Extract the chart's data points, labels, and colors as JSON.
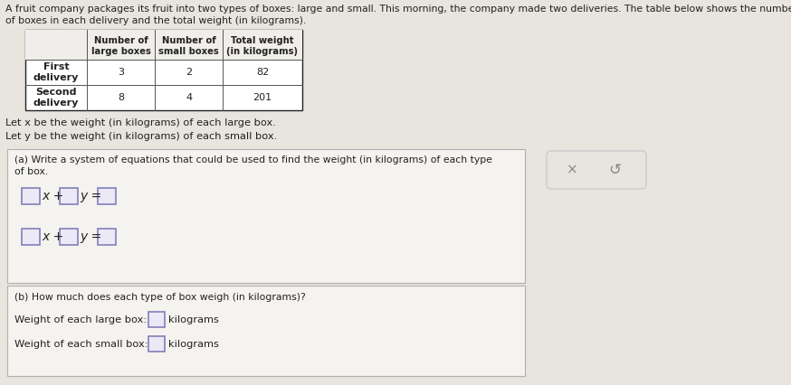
{
  "title_line1": "A fruit company packages its fruit into two types of boxes: large and small. This morning, the company made two deliveries. The table below shows the number",
  "title_line2": "of boxes in each delivery and the total weight (in kilograms).",
  "table_headers": [
    "",
    "Number of\nlarge boxes",
    "Number of\nsmall boxes",
    "Total weight\n(in kilograms)"
  ],
  "table_row1": [
    "First\ndelivery",
    "3",
    "2",
    "82"
  ],
  "table_row2": [
    "Second\ndelivery",
    "8",
    "4",
    "201"
  ],
  "let_x": "Let x be the weight (in kilograms) of each large box.",
  "let_y": "Let y be the weight (in kilograms) of each small box.",
  "part_a_label": "(a) Write a system of equations that could be used to find the weight (in kilograms) of each type\nof box.",
  "part_b_label": "(b) How much does each type of box weigh (in kilograms)?",
  "large_box_label": "Weight of each large box:",
  "small_box_label": "Weight of each small box:",
  "kilograms": "kilograms",
  "bg_color": "#e8e4de",
  "panel_bg": "#f5f3ef",
  "box_bg": "#ffffff",
  "input_box_color": "#ede8f5",
  "input_box_border": "#8080bb",
  "text_color": "#222222",
  "table_header_bg": "#f0eeea",
  "btn_panel_bg": "#e8e4de",
  "btn_text_color": "#888888",
  "btn_border_color": "#cccccc"
}
